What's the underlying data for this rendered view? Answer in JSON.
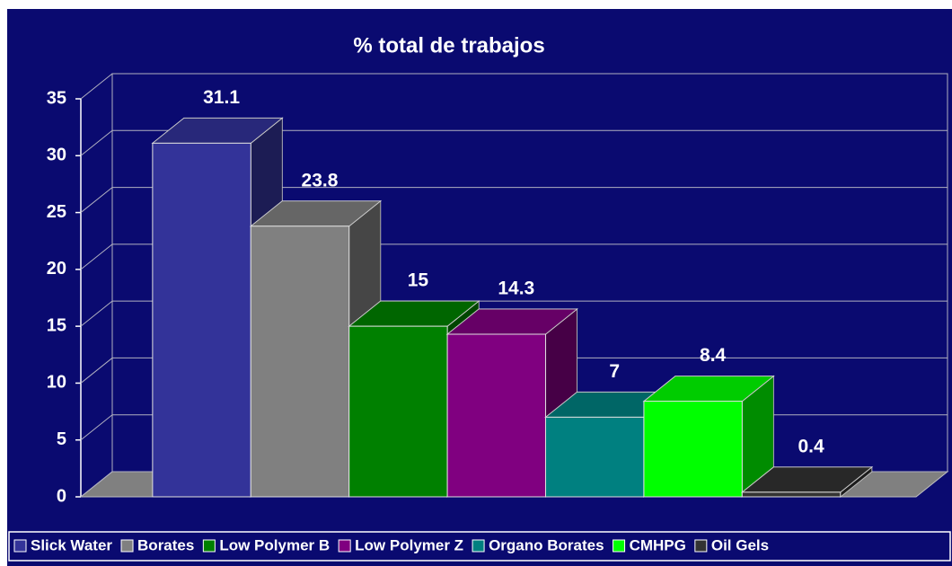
{
  "chart_data": {
    "type": "bar3d",
    "title": "% total de trabajos",
    "categories": [
      "Slick Water",
      "Borates",
      "Low Polymer B",
      "Low Polymer Z",
      "Organo Borates",
      "CMHPG",
      "Oil Gels"
    ],
    "values": [
      31.1,
      23.8,
      15,
      14.3,
      7,
      8.4,
      0.4
    ],
    "colors": [
      "#333399",
      "#808080",
      "#008000",
      "#800080",
      "#008080",
      "#00ff00",
      "#333333"
    ],
    "ylim": [
      0,
      35
    ],
    "yticks": [
      0,
      5,
      10,
      15,
      20,
      25,
      30,
      35
    ],
    "grid": true,
    "legend": "bottom"
  }
}
